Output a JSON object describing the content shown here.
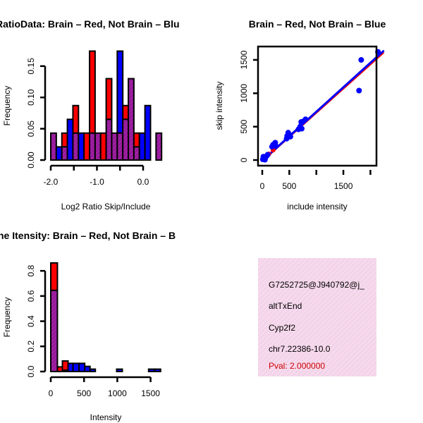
{
  "chart_data": [
    {
      "type": "bar",
      "title": "RatioData: Brain – Red, Not Brain – Blu",
      "xlabel": "Log2 Ratio Skip/Include",
      "ylabel": "Frequency",
      "xlim": [
        -2.0,
        0.4
      ],
      "ylim": [
        0,
        0.15
      ],
      "xticks": [
        "-2.0",
        "-1.0",
        "0.0"
      ],
      "xtick_values": [
        -2.0,
        -1.5,
        -1.0,
        -0.5,
        0.0
      ],
      "yticks": [
        "0.00",
        "0.05",
        "0.10",
        "0.15"
      ],
      "ytick_values": [
        0,
        0.05,
        0.1,
        0.15
      ],
      "bin_start": -2.0,
      "bin_width": 0.12,
      "series": [
        {
          "name": "Brain",
          "color": "#ff0000",
          "values": [
            0.043,
            0,
            0.043,
            0,
            0.087,
            0,
            0.043,
            0.174,
            0.043,
            0.043,
            0.13,
            0.043,
            0.043,
            0.087,
            0.13,
            0.043,
            0,
            0,
            0,
            0.043
          ]
        },
        {
          "name": "Not Brain",
          "color": "#0000ff",
          "values": [
            0.043,
            0.021,
            0.021,
            0.065,
            0.043,
            0.043,
            0,
            0.043,
            0.043,
            0,
            0.065,
            0.043,
            0.174,
            0.065,
            0.13,
            0.021,
            0.043,
            0.087,
            0,
            0.043
          ]
        }
      ],
      "overlap_color": "#a020a0"
    },
    {
      "type": "scatter",
      "title": "Brain – Red, Not Brain – Blue",
      "xlabel": "include intensity",
      "ylabel": "skip intensity",
      "xlim": [
        -80,
        2250
      ],
      "ylim": [
        -60,
        1700
      ],
      "xticks": [
        "0",
        "500",
        "1500"
      ],
      "xtick_values": [
        0,
        500,
        1000,
        1500,
        2000
      ],
      "yticks": [
        "0",
        "500",
        "1000",
        "1500"
      ],
      "ytick_values": [
        0,
        500,
        1000,
        1500
      ],
      "points": [
        [
          10,
          10
        ],
        [
          30,
          20
        ],
        [
          60,
          40
        ],
        [
          80,
          60
        ],
        [
          100,
          80
        ],
        [
          20,
          50
        ],
        [
          50,
          5
        ],
        [
          180,
          200
        ],
        [
          200,
          230
        ],
        [
          240,
          260
        ],
        [
          250,
          210
        ],
        [
          450,
          320
        ],
        [
          460,
          360
        ],
        [
          480,
          410
        ],
        [
          500,
          380
        ],
        [
          520,
          350
        ],
        [
          670,
          460
        ],
        [
          700,
          500
        ],
        [
          720,
          570
        ],
        [
          730,
          470
        ],
        [
          760,
          580
        ],
        [
          800,
          610
        ],
        [
          1790,
          1040
        ],
        [
          1830,
          1500
        ],
        [
          2140,
          1620
        ]
      ],
      "red_points": [
        [
          200,
          150
        ],
        [
          120,
          90
        ]
      ],
      "fit_lines": [
        {
          "name": "Brain fit",
          "color": "#ff0000",
          "from": [
            0,
            -20
          ],
          "to": [
            2250,
            1610
          ]
        },
        {
          "name": "Not Brain fit",
          "color": "#0000ff",
          "from": [
            0,
            -10
          ],
          "to": [
            2250,
            1640
          ]
        }
      ]
    },
    {
      "type": "bar",
      "title": "ne Itensity: Brain – Red, Not Brain – B",
      "xlabel": "Intensity",
      "ylabel": "Frequency",
      "xlim": [
        0,
        1650
      ],
      "ylim": [
        0,
        0.8
      ],
      "xticks": [
        "0",
        "500",
        "1000",
        "1500"
      ],
      "xtick_values": [
        0,
        500,
        1000,
        1500
      ],
      "yticks": [
        "0.0",
        "0.2",
        "0.4",
        "0.6",
        "0.8"
      ],
      "ytick_values": [
        0,
        0.2,
        0.4,
        0.6,
        0.8
      ],
      "bins": [
        [
          0,
          100
        ],
        [
          100,
          175
        ],
        [
          175,
          260
        ],
        [
          260,
          335
        ],
        [
          335,
          425
        ],
        [
          425,
          510
        ],
        [
          510,
          590
        ],
        [
          590,
          670
        ],
        [
          990,
          1075
        ],
        [
          1470,
          1560
        ],
        [
          1560,
          1650
        ]
      ],
      "series": [
        {
          "name": "Brain",
          "color": "#ff0000",
          "values": [
            0.863,
            0.037,
            0.084,
            0,
            0,
            0,
            0,
            0,
            0,
            0,
            0
          ]
        },
        {
          "name": "Not Brain",
          "color": "#0000ff",
          "values": [
            0.645,
            0,
            0.01,
            0.065,
            0.065,
            0.065,
            0.041,
            0.019,
            0.019,
            0.019,
            0.019
          ]
        }
      ],
      "overlap_color": "#a020a0"
    }
  ],
  "info_panel": {
    "lines": [
      "G7252725@J940792@j_",
      "altTxEnd",
      "Cyp2f2",
      "chr7.22386-10.0"
    ],
    "pval": "Pval: 2.000000",
    "pval_color": "#cc0000",
    "background": "#f8d8f0"
  }
}
